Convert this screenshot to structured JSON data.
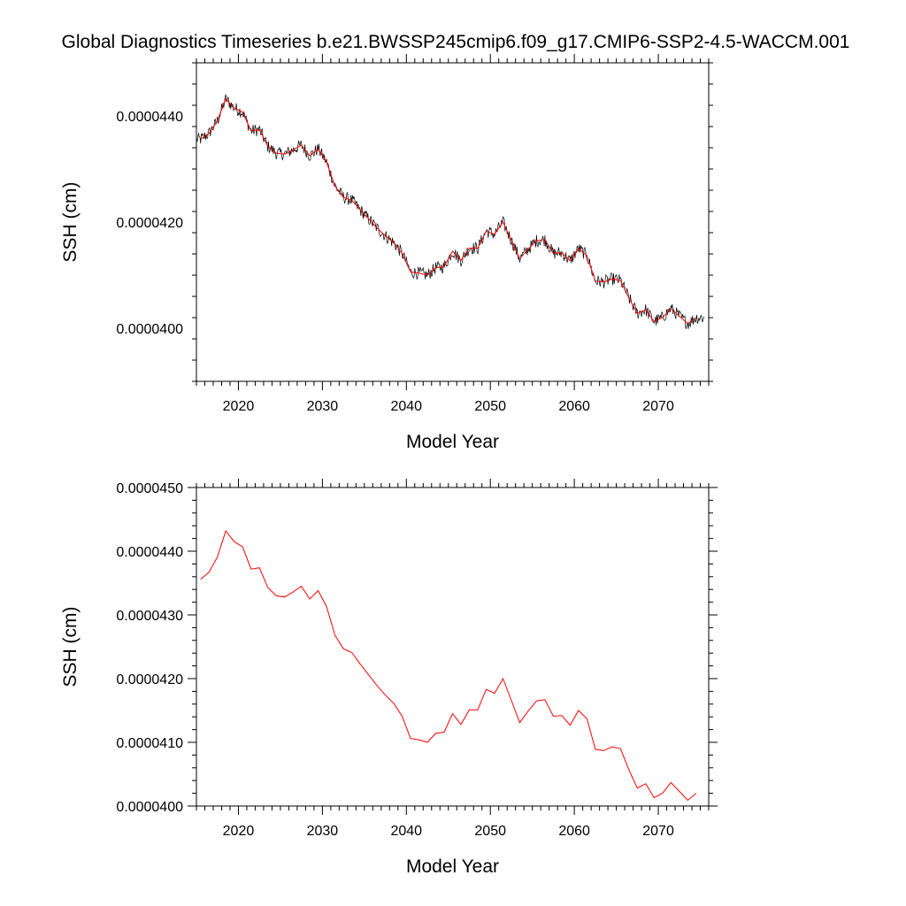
{
  "title": "Global Diagnostics Timeseries b.e21.BWSSP245cmip6.f09_g17.CMIP6-SSP2-4.5-WACCM.001",
  "colors": {
    "monthly": "#000000",
    "annual": "#ff0000",
    "axis": "#000000"
  },
  "chart_data": [
    {
      "type": "line",
      "panel": "top",
      "xlabel": "Model Year",
      "ylabel": "SSH (cm)",
      "xlim": [
        2015,
        2076
      ],
      "ylim": [
        3.9e-05,
        4.5e-05
      ],
      "xticks": [
        2020,
        2030,
        2040,
        2050,
        2060,
        2070
      ],
      "xtick_labels": [
        "2020",
        "2030",
        "2040",
        "2050",
        "2060",
        "2070"
      ],
      "yticks": [
        4e-05,
        4.2e-05,
        4.4e-05
      ],
      "ytick_labels": [
        "0.0000400",
        "0.0000420",
        "0.0000440"
      ],
      "series": [
        {
          "name": "monthly",
          "color": "#000000",
          "note": "noisy monthly series oscillating around the annual mean",
          "noise_amplitude": 1.2e-07
        },
        {
          "name": "annual",
          "color": "#ff0000",
          "x": [
            2015.5,
            2016.5,
            2017.5,
            2018.5,
            2019.5,
            2020.5,
            2021.5,
            2022.5,
            2023.5,
            2024.5,
            2025.5,
            2026.5,
            2027.5,
            2028.5,
            2029.5,
            2030.5,
            2031.5,
            2032.5,
            2033.5,
            2034.5,
            2035.5,
            2036.5,
            2037.5,
            2038.5,
            2039.5,
            2040.5,
            2041.5,
            2042.5,
            2043.5,
            2044.5,
            2045.5,
            2046.5,
            2047.5,
            2048.5,
            2049.5,
            2050.5,
            2051.5,
            2052.5,
            2053.5,
            2054.5,
            2055.5,
            2056.5,
            2057.5,
            2058.5,
            2059.5,
            2060.5,
            2061.5,
            2062.5,
            2063.5,
            2064.5,
            2065.5,
            2066.5,
            2067.5,
            2068.5,
            2069.5,
            2070.5,
            2071.5,
            2072.5,
            2073.5,
            2074.5
          ],
          "values": [
            4.356e-05,
            4.367e-05,
            4.391e-05,
            4.432e-05,
            4.415e-05,
            4.407e-05,
            4.372e-05,
            4.374e-05,
            4.343e-05,
            4.33e-05,
            4.328e-05,
            4.336e-05,
            4.345e-05,
            4.325e-05,
            4.338e-05,
            4.313e-05,
            4.268e-05,
            4.247e-05,
            4.241e-05,
            4.223e-05,
            4.206e-05,
            4.189e-05,
            4.174e-05,
            4.161e-05,
            4.141e-05,
            4.106e-05,
            4.104e-05,
            4.1e-05,
            4.114e-05,
            4.116e-05,
            4.145e-05,
            4.128e-05,
            4.151e-05,
            4.151e-05,
            4.183e-05,
            4.177e-05,
            4.2e-05,
            4.166e-05,
            4.131e-05,
            4.149e-05,
            4.165e-05,
            4.167e-05,
            4.141e-05,
            4.142e-05,
            4.127e-05,
            4.15e-05,
            4.137e-05,
            4.089e-05,
            4.087e-05,
            4.093e-05,
            4.09e-05,
            4.057e-05,
            4.028e-05,
            4.035e-05,
            4.013e-05,
            4.02e-05,
            4.037e-05,
            4.023e-05,
            4.009e-05,
            4.02e-05
          ]
        }
      ]
    },
    {
      "type": "line",
      "panel": "bottom",
      "xlabel": "Model Year",
      "ylabel": "SSH (cm)",
      "xlim": [
        2015,
        2076
      ],
      "ylim": [
        4e-05,
        4.5e-05
      ],
      "xticks": [
        2020,
        2030,
        2040,
        2050,
        2060,
        2070
      ],
      "xtick_labels": [
        "2020",
        "2030",
        "2040",
        "2050",
        "2060",
        "2070"
      ],
      "yticks": [
        4e-05,
        4.1e-05,
        4.2e-05,
        4.3e-05,
        4.4e-05,
        4.5e-05
      ],
      "ytick_labels": [
        "0.0000400",
        "0.0000410",
        "0.0000420",
        "0.0000430",
        "0.0000440",
        "0.0000450"
      ],
      "series": [
        {
          "name": "annual",
          "color": "#ff0000",
          "x": [
            2015.5,
            2016.5,
            2017.5,
            2018.5,
            2019.5,
            2020.5,
            2021.5,
            2022.5,
            2023.5,
            2024.5,
            2025.5,
            2026.5,
            2027.5,
            2028.5,
            2029.5,
            2030.5,
            2031.5,
            2032.5,
            2033.5,
            2034.5,
            2035.5,
            2036.5,
            2037.5,
            2038.5,
            2039.5,
            2040.5,
            2041.5,
            2042.5,
            2043.5,
            2044.5,
            2045.5,
            2046.5,
            2047.5,
            2048.5,
            2049.5,
            2050.5,
            2051.5,
            2052.5,
            2053.5,
            2054.5,
            2055.5,
            2056.5,
            2057.5,
            2058.5,
            2059.5,
            2060.5,
            2061.5,
            2062.5,
            2063.5,
            2064.5,
            2065.5,
            2066.5,
            2067.5,
            2068.5,
            2069.5,
            2070.5,
            2071.5,
            2072.5,
            2073.5,
            2074.5
          ],
          "values": [
            4.356e-05,
            4.367e-05,
            4.391e-05,
            4.432e-05,
            4.415e-05,
            4.407e-05,
            4.372e-05,
            4.374e-05,
            4.343e-05,
            4.33e-05,
            4.328e-05,
            4.336e-05,
            4.345e-05,
            4.325e-05,
            4.338e-05,
            4.313e-05,
            4.268e-05,
            4.247e-05,
            4.241e-05,
            4.223e-05,
            4.206e-05,
            4.189e-05,
            4.174e-05,
            4.161e-05,
            4.141e-05,
            4.106e-05,
            4.104e-05,
            4.1e-05,
            4.114e-05,
            4.116e-05,
            4.145e-05,
            4.128e-05,
            4.151e-05,
            4.151e-05,
            4.183e-05,
            4.177e-05,
            4.2e-05,
            4.166e-05,
            4.131e-05,
            4.149e-05,
            4.165e-05,
            4.167e-05,
            4.141e-05,
            4.142e-05,
            4.127e-05,
            4.15e-05,
            4.137e-05,
            4.089e-05,
            4.087e-05,
            4.093e-05,
            4.09e-05,
            4.057e-05,
            4.028e-05,
            4.035e-05,
            4.013e-05,
            4.02e-05,
            4.037e-05,
            4.023e-05,
            4.009e-05,
            4.02e-05
          ]
        }
      ]
    }
  ]
}
